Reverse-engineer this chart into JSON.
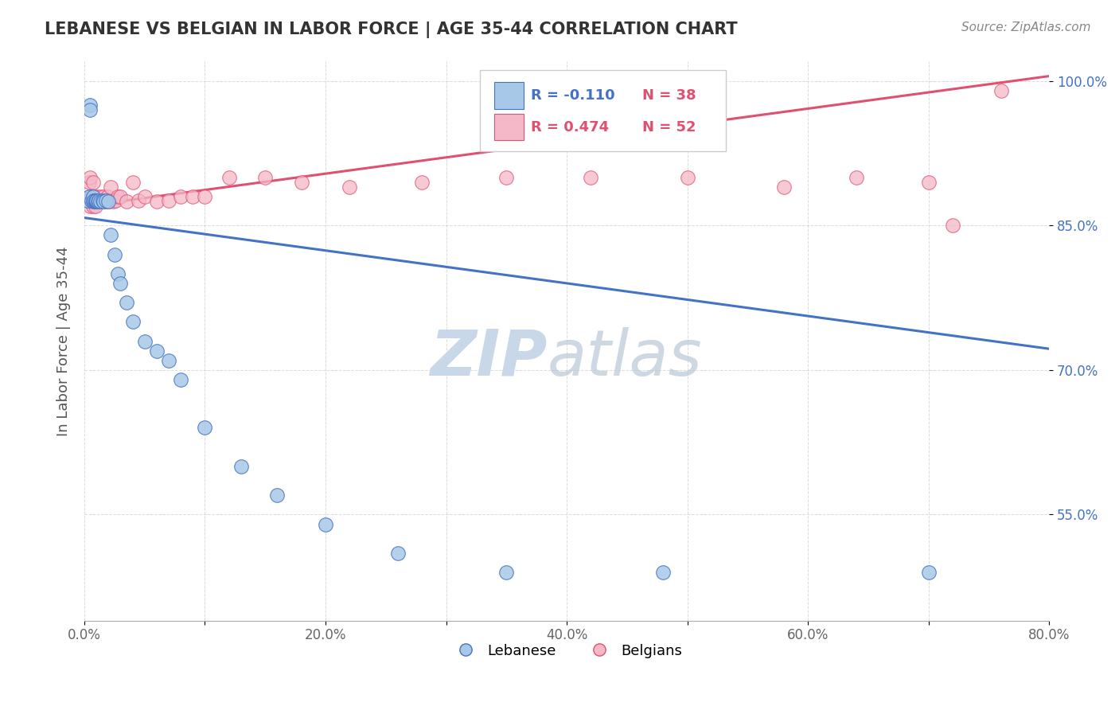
{
  "title": "LEBANESE VS BELGIAN IN LABOR FORCE | AGE 35-44 CORRELATION CHART",
  "source_text": "Source: ZipAtlas.com",
  "ylabel": "In Labor Force | Age 35-44",
  "xlim": [
    0.0,
    0.8
  ],
  "ylim": [
    0.44,
    1.02
  ],
  "xtick_labels": [
    "0.0%",
    "",
    "20.0%",
    "",
    "40.0%",
    "",
    "60.0%",
    "",
    "80.0%"
  ],
  "xtick_vals": [
    0.0,
    0.1,
    0.2,
    0.3,
    0.4,
    0.5,
    0.6,
    0.7,
    0.8
  ],
  "ytick_labels": [
    "55.0%",
    "70.0%",
    "85.0%",
    "100.0%"
  ],
  "ytick_vals": [
    0.55,
    0.7,
    0.85,
    1.0
  ],
  "legend_r1": "R = -0.110",
  "legend_n1": "N = 38",
  "legend_r2": "R = 0.474",
  "legend_n2": "N = 52",
  "color_lebanese": "#a8c8e8",
  "color_belgian": "#f4b8c8",
  "color_line_lebanese": "#4472C4",
  "color_line_belgian": "#e05070",
  "ytick_color": "#4472C4",
  "watermark_zip": "ZIP",
  "watermark_atlas": "atlas",
  "watermark_color": "#c8d8e8",
  "background_color": "#ffffff",
  "grid_color": "#cccccc",
  "line_blue_x0": 0.0,
  "line_blue_y0": 0.858,
  "line_blue_x1": 0.8,
  "line_blue_y1": 0.722,
  "line_pink_x0": 0.0,
  "line_pink_y0": 0.87,
  "line_pink_x1": 0.8,
  "line_pink_y1": 1.005,
  "lebanese_x": [
    0.003,
    0.004,
    0.005,
    0.005,
    0.006,
    0.007,
    0.007,
    0.008,
    0.008,
    0.009,
    0.009,
    0.01,
    0.01,
    0.011,
    0.012,
    0.013,
    0.015,
    0.016,
    0.018,
    0.02,
    0.022,
    0.025,
    0.028,
    0.03,
    0.035,
    0.04,
    0.05,
    0.06,
    0.07,
    0.08,
    0.1,
    0.13,
    0.16,
    0.2,
    0.26,
    0.35,
    0.48,
    0.7
  ],
  "lebanese_y": [
    0.876,
    0.88,
    0.975,
    0.97,
    0.876,
    0.875,
    0.88,
    0.876,
    0.876,
    0.875,
    0.876,
    0.875,
    0.876,
    0.875,
    0.876,
    0.875,
    0.876,
    0.875,
    0.876,
    0.875,
    0.84,
    0.82,
    0.8,
    0.79,
    0.77,
    0.75,
    0.73,
    0.72,
    0.71,
    0.69,
    0.64,
    0.6,
    0.57,
    0.54,
    0.51,
    0.49,
    0.49,
    0.49
  ],
  "belgian_x": [
    0.003,
    0.004,
    0.004,
    0.005,
    0.005,
    0.006,
    0.006,
    0.007,
    0.007,
    0.008,
    0.008,
    0.009,
    0.009,
    0.01,
    0.01,
    0.011,
    0.012,
    0.013,
    0.014,
    0.015,
    0.016,
    0.017,
    0.018,
    0.019,
    0.02,
    0.022,
    0.024,
    0.026,
    0.028,
    0.03,
    0.035,
    0.04,
    0.045,
    0.05,
    0.06,
    0.07,
    0.08,
    0.09,
    0.1,
    0.12,
    0.15,
    0.18,
    0.22,
    0.28,
    0.35,
    0.42,
    0.5,
    0.58,
    0.64,
    0.7,
    0.72,
    0.76
  ],
  "belgian_y": [
    0.876,
    0.88,
    0.895,
    0.87,
    0.9,
    0.876,
    0.88,
    0.895,
    0.87,
    0.876,
    0.88,
    0.87,
    0.876,
    0.875,
    0.88,
    0.875,
    0.876,
    0.88,
    0.875,
    0.876,
    0.88,
    0.875,
    0.876,
    0.88,
    0.875,
    0.89,
    0.875,
    0.876,
    0.88,
    0.88,
    0.875,
    0.895,
    0.876,
    0.88,
    0.875,
    0.876,
    0.88,
    0.88,
    0.88,
    0.9,
    0.9,
    0.895,
    0.89,
    0.895,
    0.9,
    0.9,
    0.9,
    0.89,
    0.9,
    0.895,
    0.85,
    0.99
  ]
}
